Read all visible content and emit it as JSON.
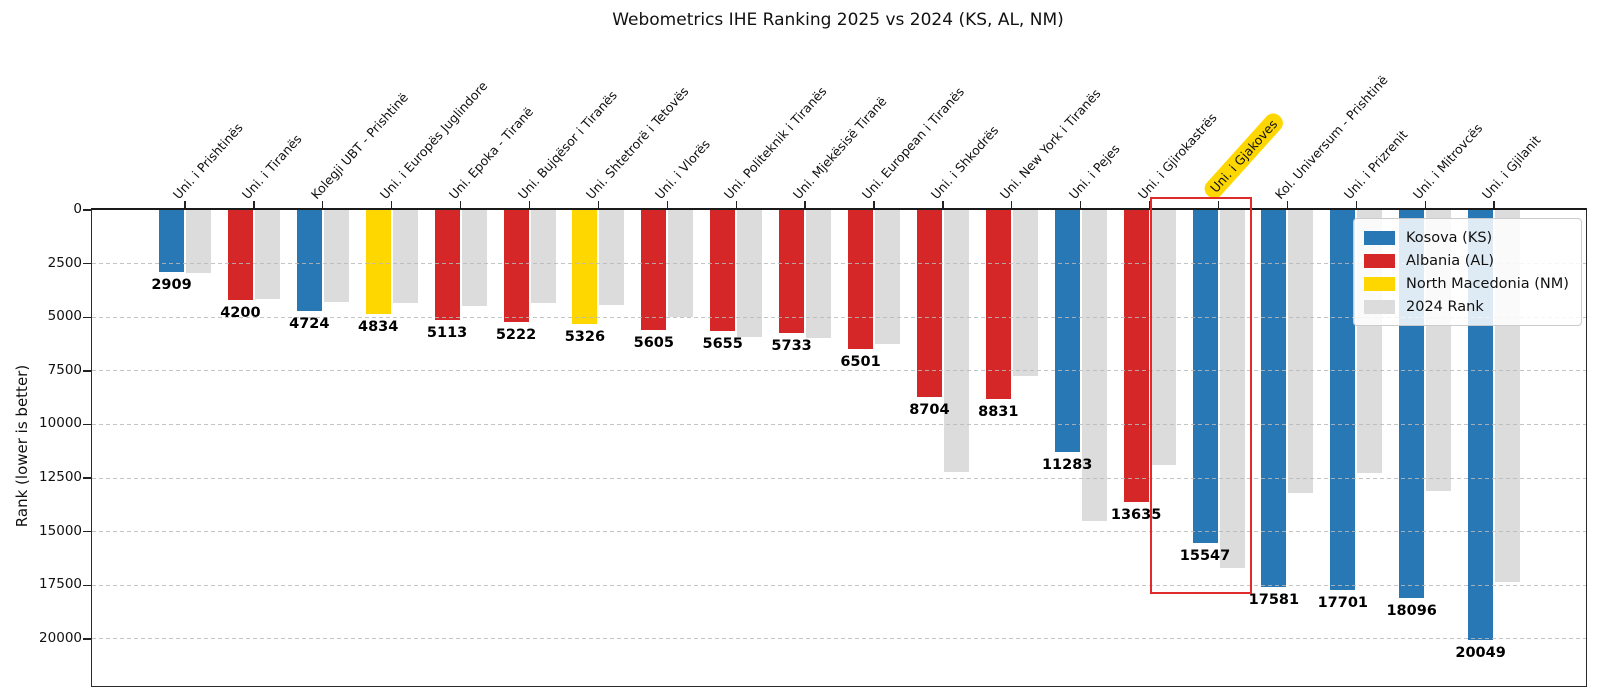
{
  "page": {
    "title": "Webometrics IHE Ranking 2025 vs 2024 (KS, AL, NM)"
  },
  "axes": {
    "ylabel": "Rank (lower is better)",
    "y_tick_labels": [
      "0",
      "2500",
      "5000",
      "7500",
      "10000",
      "12500",
      "15000",
      "17500",
      "20000"
    ],
    "y_tick_values": [
      0,
      2500,
      5000,
      7500,
      10000,
      12500,
      15000,
      17500,
      20000
    ]
  },
  "colors": {
    "kosovo_blue": "#2878b5",
    "albania_red": "#d62728",
    "north_macedonia_yellow": "#FFD700",
    "rank_2024_gray": "#dcdcdc",
    "highlight_box_red": "#e02b2b",
    "highlight_label_background": "#FFD700"
  },
  "legend": {
    "items": [
      {
        "label": "Kosova (KS)",
        "color": "#2878b5"
      },
      {
        "label": "Albania (AL)",
        "color": "#d62728"
      },
      {
        "label": "North Macedonia (NM)",
        "color": "#FFD700"
      },
      {
        "label": "2024 Rank",
        "color": "#dcdcdc"
      }
    ]
  },
  "chart_data": {
    "type": "bar",
    "title": "Webometrics IHE Ranking 2025 vs 2024 (KS, AL, NM)",
    "xlabel": "",
    "ylabel": "Rank (lower is better)",
    "ylim": [
      0,
      22200
    ],
    "y_axis_inverted": true,
    "grid": "horizontal dashed",
    "legend_position": "upper right",
    "categories": [
      "Uni. i Prishtinës",
      "Uni. i Tiranës",
      "Kolegji UBT - Prishtinë",
      "Uni. i Europës Juglindore",
      "Uni. Epoka - Tiranë",
      "Uni. Bujqësor i Tiranës",
      "Uni. Shtetrorë i Tetovës",
      "Uni. i Vlorës",
      "Uni. Politeknik i Tiranës",
      "Uni. Mjekësisë Tiranë",
      "Uni. European i Tiranës",
      "Uni. i Shkodrës",
      "Uni. New York i Tiranës",
      "Uni. i Pejes",
      "Uni. i Gjirokastrës",
      "Uni. i Gjakoves",
      "Kol. Universum - Prishtinë",
      "Uni. i Prizrenit",
      "Uni. i Mitrovcës",
      "Uni. i Gjilanit"
    ],
    "country_codes": [
      "KS",
      "AL",
      "KS",
      "NM",
      "AL",
      "AL",
      "NM",
      "AL",
      "AL",
      "AL",
      "AL",
      "AL",
      "AL",
      "KS",
      "AL",
      "KS",
      "KS",
      "KS",
      "KS",
      "KS"
    ],
    "series": [
      {
        "name": "2025 Rank",
        "values": [
          2909,
          4200,
          4724,
          4834,
          5113,
          5222,
          5326,
          5605,
          5655,
          5733,
          6501,
          8704,
          8831,
          11283,
          13635,
          15547,
          17581,
          17701,
          18096,
          20049
        ],
        "labels_shown": true
      },
      {
        "name": "2024 Rank",
        "values_estimated": [
          2950,
          4150,
          4270,
          4360,
          4500,
          4360,
          4450,
          5000,
          5900,
          5950,
          6250,
          12200,
          7750,
          14500,
          11900,
          16700,
          13200,
          12250,
          13100,
          17350
        ],
        "labels_shown": false
      }
    ],
    "highlight": {
      "category": "Uni. i Gjakoves",
      "index": 15,
      "value_2025": 15547,
      "label_background": "#FFD700",
      "box_color": "#e02b2b"
    }
  }
}
